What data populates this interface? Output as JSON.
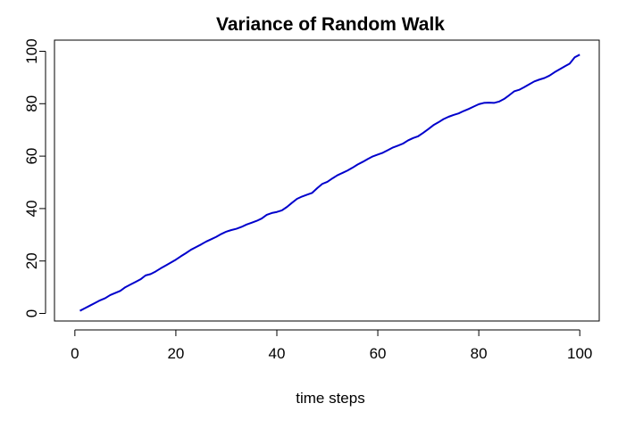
{
  "chart_data": {
    "type": "line",
    "title": "Variance of Random Walk",
    "xlabel": "time steps",
    "ylabel": "",
    "xlim": [
      1,
      100
    ],
    "ylim": [
      0,
      100
    ],
    "x_ticks": [
      0,
      20,
      40,
      60,
      80,
      100
    ],
    "y_ticks": [
      0,
      20,
      40,
      60,
      80,
      100
    ],
    "grid": false,
    "series": [
      {
        "color": "#0000cc",
        "x": [
          1,
          2,
          3,
          4,
          5,
          6,
          7,
          8,
          9,
          10,
          11,
          12,
          13,
          14,
          15,
          16,
          17,
          18,
          19,
          20,
          21,
          22,
          23,
          24,
          25,
          26,
          27,
          28,
          29,
          30,
          31,
          32,
          33,
          34,
          35,
          36,
          37,
          38,
          39,
          40,
          41,
          42,
          43,
          44,
          45,
          46,
          47,
          48,
          49,
          50,
          51,
          52,
          53,
          54,
          55,
          56,
          57,
          58,
          59,
          60,
          61,
          62,
          63,
          64,
          65,
          66,
          67,
          68,
          69,
          70,
          71,
          72,
          73,
          74,
          75,
          76,
          77,
          78,
          79,
          80,
          81,
          82,
          83,
          84,
          85,
          86,
          87,
          88,
          89,
          90,
          91,
          92,
          93,
          94,
          95,
          96,
          97,
          98,
          99,
          100
        ],
        "values": [
          1,
          2,
          3,
          4,
          5,
          5.8,
          7,
          7.8,
          8.6,
          10,
          11,
          12,
          13,
          14.5,
          15,
          16,
          17.2,
          18.3,
          19.4,
          20.5,
          21.8,
          23,
          24.3,
          25.3,
          26.3,
          27.4,
          28.3,
          29.2,
          30.3,
          31.2,
          31.8,
          32.3,
          33,
          33.9,
          34.6,
          35.3,
          36.2,
          37.6,
          38.3,
          38.7,
          39.3,
          40.6,
          42.2,
          43.7,
          44.6,
          45.3,
          46,
          47.8,
          49.4,
          50.2,
          51.5,
          52.7,
          53.6,
          54.5,
          55.6,
          56.8,
          57.8,
          58.9,
          59.9,
          60.6,
          61.3,
          62.3,
          63.3,
          64,
          64.8,
          66,
          66.9,
          67.6,
          68.9,
          70.3,
          71.8,
          72.9,
          74.1,
          75,
          75.7,
          76.3,
          77.2,
          78,
          78.9,
          79.8,
          80.3,
          80.4,
          80.3,
          80.8,
          81.8,
          83.2,
          84.7,
          85.3,
          86.3,
          87.4,
          88.5,
          89.2,
          89.8,
          90.7,
          92,
          93.1,
          94.2,
          95.3,
          97.7,
          98.7
        ]
      }
    ]
  }
}
